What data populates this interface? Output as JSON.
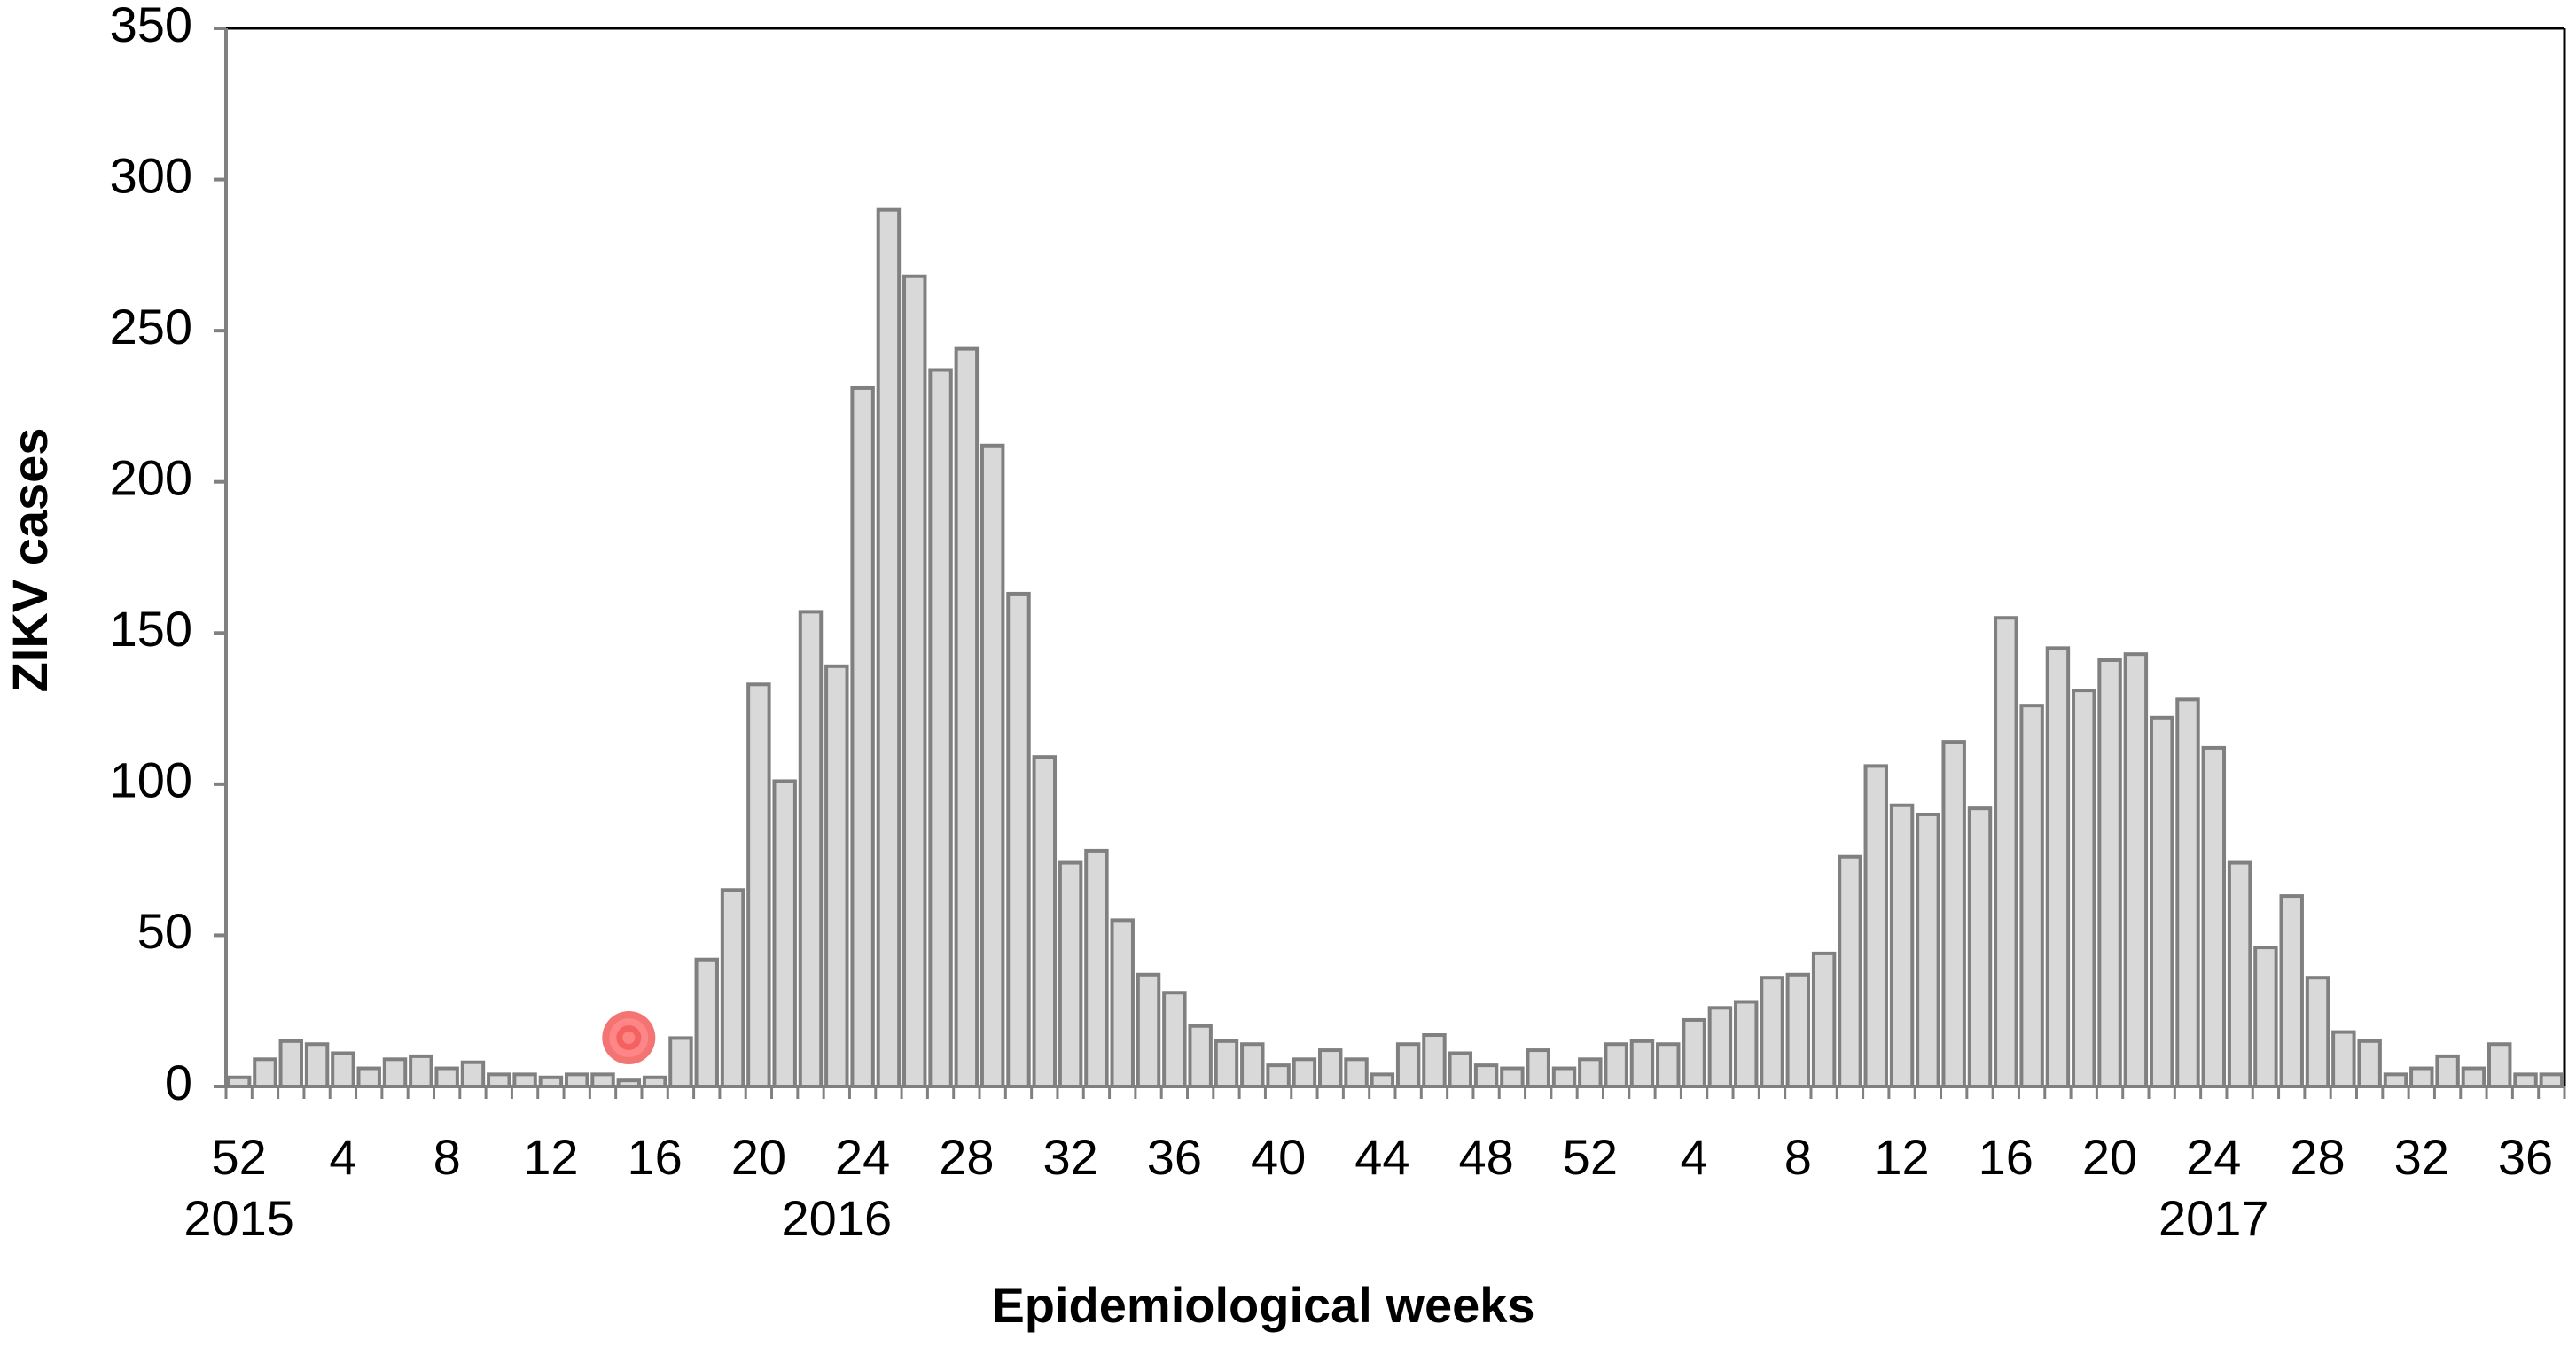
{
  "chart_data": {
    "type": "bar",
    "y_label": "ZIKV cases",
    "x_label": "Epidemiological weeks",
    "categories": [
      "52",
      null,
      null,
      null,
      "4",
      null,
      null,
      null,
      "8",
      null,
      null,
      null,
      "12",
      null,
      null,
      null,
      "16",
      null,
      null,
      null,
      "20",
      null,
      null,
      null,
      "24",
      null,
      null,
      null,
      "28",
      null,
      null,
      null,
      "32",
      null,
      null,
      null,
      "36",
      null,
      null,
      null,
      "40",
      null,
      null,
      null,
      "44",
      null,
      null,
      null,
      "48",
      null,
      null,
      null,
      "52",
      null,
      null,
      null,
      "4",
      null,
      null,
      null,
      "8",
      null,
      null,
      null,
      "12",
      null,
      null,
      null,
      "16",
      null,
      null,
      null,
      "20",
      null,
      null,
      null,
      "24",
      null,
      null,
      null,
      "28",
      null,
      null,
      null,
      "32",
      null,
      null,
      null,
      "36",
      null
    ],
    "category_years": [
      "2015",
      null,
      null,
      null,
      null,
      null,
      null,
      null,
      null,
      null,
      null,
      null,
      null,
      null,
      null,
      null,
      null,
      null,
      null,
      null,
      null,
      null,
      null,
      "2016",
      null,
      null,
      null,
      null,
      null,
      null,
      null,
      null,
      null,
      null,
      null,
      null,
      null,
      null,
      null,
      null,
      null,
      null,
      null,
      null,
      null,
      null,
      null,
      null,
      null,
      null,
      null,
      null,
      null,
      null,
      null,
      null,
      null,
      null,
      null,
      null,
      null,
      null,
      null,
      null,
      null,
      null,
      null,
      null,
      null,
      null,
      null,
      null,
      null,
      null,
      null,
      null,
      "2017",
      null,
      null,
      null,
      null,
      null,
      null,
      null,
      null,
      null,
      null,
      null,
      null,
      null
    ],
    "values": [
      3,
      9,
      15,
      14,
      11,
      6,
      9,
      10,
      6,
      8,
      4,
      4,
      3,
      4,
      4,
      2,
      3,
      16,
      42,
      65,
      133,
      101,
      157,
      139,
      231,
      290,
      268,
      237,
      244,
      212,
      163,
      109,
      74,
      78,
      55,
      37,
      31,
      20,
      15,
      14,
      7,
      9,
      12,
      9,
      4,
      14,
      17,
      11,
      7,
      6,
      12,
      6,
      9,
      14,
      15,
      14,
      22,
      26,
      28,
      36,
      37,
      44,
      76,
      106,
      93,
      90,
      114,
      92,
      155,
      126,
      145,
      131,
      141,
      143,
      122,
      128,
      112,
      74,
      46,
      63,
      36,
      18,
      15,
      4,
      6,
      10,
      6,
      14,
      4,
      4
    ],
    "color": "#d9d9d9",
    "ylim": [
      0,
      350
    ],
    "yticks": [
      0,
      50,
      100,
      150,
      200,
      250,
      300,
      350
    ],
    "grid": false
  }
}
